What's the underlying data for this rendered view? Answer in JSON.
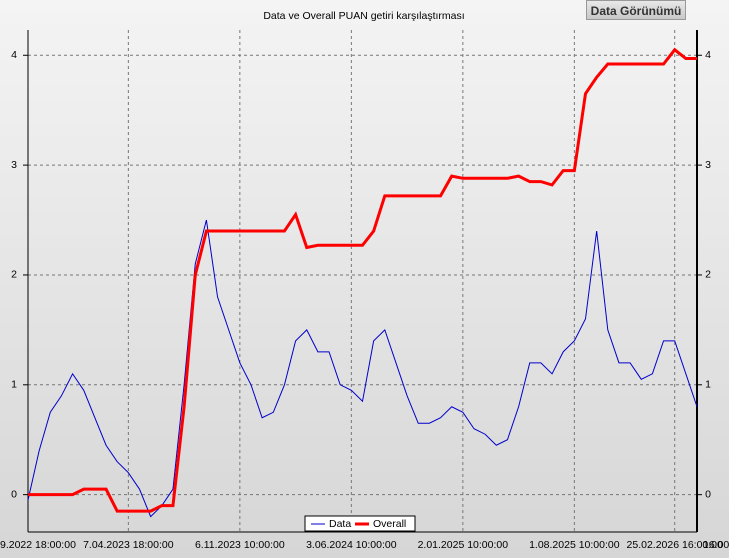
{
  "button_label": "Data Görünümü",
  "chart_data": {
    "type": "line",
    "title": "Data ve Overall PUAN getiri karşılaştırması",
    "categories": [
      "9.2022 18:00:00",
      null,
      null,
      null,
      null,
      null,
      null,
      null,
      null,
      "7.04.2023 18:00:00",
      null,
      null,
      null,
      null,
      null,
      null,
      null,
      null,
      null,
      "6.11.2023 10:00:00",
      null,
      null,
      null,
      null,
      null,
      null,
      null,
      null,
      null,
      "3.06.2024 10:00:00",
      null,
      null,
      null,
      null,
      null,
      null,
      null,
      null,
      null,
      "2.01.2025 10:00:00",
      null,
      null,
      null,
      null,
      null,
      null,
      null,
      null,
      null,
      "1.08.2025 10:00:00",
      null,
      null,
      null,
      null,
      null,
      null,
      null,
      null,
      "25.02.2026 16:00:00",
      null,
      "16:00:0"
    ],
    "series": [
      {
        "name": "Data",
        "color": "#0000cc",
        "values": [
          -0.05,
          0.4,
          0.75,
          0.9,
          1.1,
          0.95,
          0.7,
          0.45,
          0.3,
          0.2,
          0.05,
          -0.2,
          -0.1,
          0.05,
          1.0,
          2.1,
          2.5,
          1.8,
          1.5,
          1.2,
          1.0,
          0.7,
          0.75,
          1.0,
          1.4,
          1.5,
          1.3,
          1.3,
          1.0,
          0.95,
          0.85,
          1.4,
          1.5,
          1.2,
          0.9,
          0.65,
          0.65,
          0.7,
          0.8,
          0.75,
          0.6,
          0.55,
          0.45,
          0.5,
          0.8,
          1.2,
          1.2,
          1.1,
          1.3,
          1.4,
          1.6,
          2.4,
          1.5,
          1.2,
          1.2,
          1.05,
          1.1,
          1.4,
          1.4,
          1.1,
          0.8
        ]
      },
      {
        "name": "Overall",
        "color": "#ff0000",
        "values": [
          0,
          0,
          0,
          0,
          0,
          0.05,
          0.05,
          0.05,
          -0.15,
          -0.15,
          -0.15,
          -0.15,
          -0.1,
          -0.1,
          0.8,
          2.0,
          2.4,
          2.4,
          2.4,
          2.4,
          2.4,
          2.4,
          2.4,
          2.4,
          2.55,
          2.25,
          2.27,
          2.27,
          2.27,
          2.27,
          2.27,
          2.4,
          2.72,
          2.72,
          2.72,
          2.72,
          2.72,
          2.72,
          2.9,
          2.88,
          2.88,
          2.88,
          2.88,
          2.88,
          2.9,
          2.85,
          2.85,
          2.82,
          2.95,
          2.95,
          3.65,
          3.8,
          3.92,
          3.92,
          3.92,
          3.92,
          3.92,
          3.92,
          4.05,
          3.97,
          3.97
        ]
      }
    ],
    "ylim": [
      -0.34,
      4.23
    ],
    "yticks": [
      0,
      1,
      2,
      3,
      4
    ],
    "grid": true,
    "legend": "bottom"
  }
}
